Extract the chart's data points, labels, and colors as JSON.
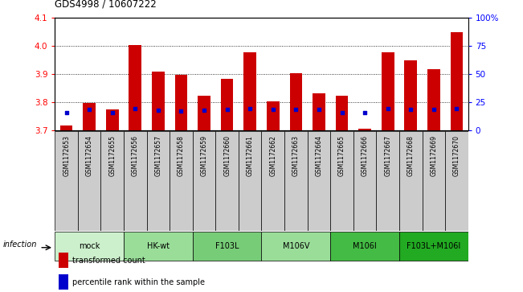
{
  "title": "GDS4998 / 10607222",
  "samples": [
    "GSM1172653",
    "GSM1172654",
    "GSM1172655",
    "GSM1172656",
    "GSM1172657",
    "GSM1172658",
    "GSM1172659",
    "GSM1172660",
    "GSM1172661",
    "GSM1172662",
    "GSM1172663",
    "GSM1172664",
    "GSM1172665",
    "GSM1172666",
    "GSM1172667",
    "GSM1172668",
    "GSM1172669",
    "GSM1172670"
  ],
  "bar_heights": [
    3.715,
    3.797,
    3.773,
    4.002,
    3.908,
    3.897,
    3.822,
    3.882,
    3.975,
    3.803,
    3.902,
    3.83,
    3.822,
    3.705,
    3.975,
    3.948,
    3.915,
    4.048
  ],
  "blue_dot_y": [
    3.762,
    3.773,
    3.762,
    3.775,
    3.77,
    3.768,
    3.77,
    3.772,
    3.775,
    3.773,
    3.773,
    3.773,
    3.762,
    3.762,
    3.775,
    3.773,
    3.773,
    3.775
  ],
  "ylim_left": [
    3.7,
    4.1
  ],
  "ylim_right": [
    0,
    100
  ],
  "yticks_left": [
    3.7,
    3.8,
    3.9,
    4.0,
    4.1
  ],
  "yticks_right": [
    0,
    25,
    50,
    75,
    100
  ],
  "ytick_labels_right": [
    "0",
    "25",
    "50",
    "75",
    "100%"
  ],
  "groups": [
    {
      "label": "mock",
      "start": 0,
      "end": 3,
      "color": "#ccf0cc"
    },
    {
      "label": "HK-wt",
      "start": 3,
      "end": 6,
      "color": "#99dd99"
    },
    {
      "label": "F103L",
      "start": 6,
      "end": 9,
      "color": "#77cc77"
    },
    {
      "label": "M106V",
      "start": 9,
      "end": 12,
      "color": "#99dd99"
    },
    {
      "label": "M106I",
      "start": 12,
      "end": 15,
      "color": "#44bb44"
    },
    {
      "label": "F103L+M106I",
      "start": 15,
      "end": 18,
      "color": "#22aa22"
    }
  ],
  "bar_color": "#cc0000",
  "dot_color": "#0000cc",
  "bar_width": 0.55,
  "label_cell_color": "#cccccc",
  "plot_bg": "#ffffff",
  "infection_label": "infection"
}
